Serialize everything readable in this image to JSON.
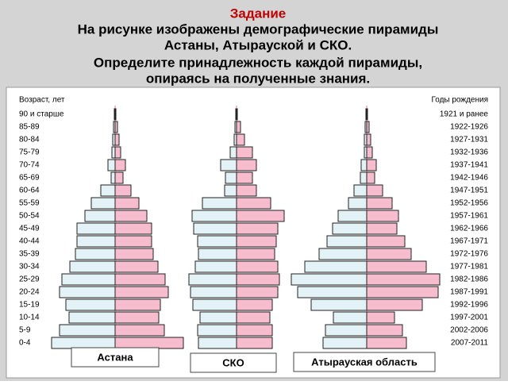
{
  "header": {
    "title": "Задание",
    "lines": [
      "На рисунке изображены демографические пирамиды",
      "Астаны, Атырауской и СКО.",
      "Определите принадлежность каждой пирамиды,",
      "опираясь на полученные знания."
    ]
  },
  "chart_data": {
    "type": "pyramid",
    "y_label_left": "Возраст, лет",
    "y_label_right": "Годы рождения",
    "categories": [
      "90 и старше",
      "85-89",
      "80-84",
      "75-79",
      "70-74",
      "65-69",
      "60-64",
      "55-59",
      "50-54",
      "45-49",
      "40-44",
      "35-39",
      "30-34",
      "25-29",
      "20-24",
      "15-19",
      "10-14",
      "5-9",
      "0-4"
    ],
    "years": [
      "1921 и ранее",
      "1922-1926",
      "1927-1931",
      "1932-1936",
      "1937-1941",
      "1942-1946",
      "1947-1951",
      "1952-1956",
      "1957-1961",
      "1962-1966",
      "1967-1971",
      "1972-1976",
      "1977-1981",
      "1982-1986",
      "1987-1991",
      "1992-1996",
      "1997-2001",
      "2002-2006",
      "2007-2011"
    ],
    "left_color": "#e2f2f6",
    "right_color": "#f7bccd",
    "pyramids": [
      {
        "name": "Астана",
        "left": [
          1,
          2,
          3,
          4,
          9,
          5,
          18,
          30,
          38,
          48,
          48,
          50,
          57,
          67,
          70,
          62,
          58,
          70,
          80
        ],
        "right": [
          1,
          3,
          5,
          7,
          13,
          10,
          20,
          30,
          40,
          46,
          46,
          48,
          54,
          63,
          67,
          57,
          55,
          62,
          86
        ]
      },
      {
        "name": "СКО",
        "left": [
          1,
          2,
          3,
          8,
          20,
          14,
          15,
          43,
          56,
          54,
          49,
          48,
          52,
          60,
          58,
          55,
          46,
          49,
          48
        ],
        "right": [
          1,
          5,
          10,
          20,
          25,
          20,
          25,
          43,
          60,
          52,
          50,
          48,
          52,
          54,
          52,
          45,
          42,
          45,
          45
        ]
      },
      {
        "name": "Атырауская область",
        "left": [
          1,
          2,
          3,
          3,
          7,
          8,
          16,
          23,
          36,
          43,
          50,
          60,
          78,
          95,
          87,
          70,
          42,
          52,
          55
        ],
        "right": [
          1,
          3,
          5,
          7,
          12,
          10,
          20,
          32,
          40,
          38,
          48,
          56,
          75,
          92,
          90,
          70,
          35,
          45,
          50
        ]
      }
    ]
  }
}
